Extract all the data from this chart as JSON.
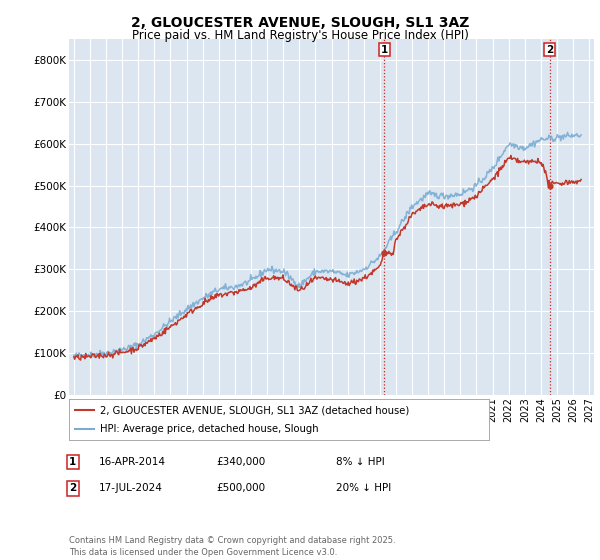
{
  "title": "2, GLOUCESTER AVENUE, SLOUGH, SL1 3AZ",
  "subtitle": "Price paid vs. HM Land Registry's House Price Index (HPI)",
  "ylim": [
    0,
    850000
  ],
  "yticks": [
    0,
    100000,
    200000,
    300000,
    400000,
    500000,
    600000,
    700000,
    800000
  ],
  "ytick_labels": [
    "£0",
    "£100K",
    "£200K",
    "£300K",
    "£400K",
    "£500K",
    "£600K",
    "£700K",
    "£800K"
  ],
  "xlim_start": 1994.7,
  "xlim_end": 2027.3,
  "background_color": "#ffffff",
  "plot_bg_color": "#dce6f1",
  "grid_color": "#ffffff",
  "hpi_color": "#7aadd4",
  "price_color": "#c0392b",
  "marker1_date": 2014.29,
  "marker1_price": 340000,
  "marker1_label": "1",
  "marker2_date": 2024.54,
  "marker2_price": 500000,
  "marker2_label": "2",
  "annotation1_date": "16-APR-2014",
  "annotation1_price": "£340,000",
  "annotation1_pct": "8% ↓ HPI",
  "annotation2_date": "17-JUL-2024",
  "annotation2_price": "£500,000",
  "annotation2_pct": "20% ↓ HPI",
  "legend_line1": "2, GLOUCESTER AVENUE, SLOUGH, SL1 3AZ (detached house)",
  "legend_line2": "HPI: Average price, detached house, Slough",
  "footer": "Contains HM Land Registry data © Crown copyright and database right 2025.\nThis data is licensed under the Open Government Licence v3.0.",
  "vline_color": "#cc2222",
  "vline_style": ":"
}
